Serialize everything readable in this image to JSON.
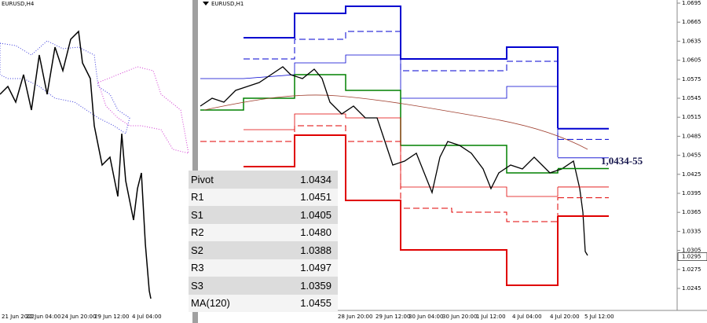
{
  "left_panel": {
    "symbol": "EURUSD,H4",
    "time_labels": [
      "21 Jun 2022",
      "22 Jun 04:00",
      "24 Jun 20:00",
      "29 Jun 12:00",
      "4 Jul 04:00"
    ]
  },
  "right_panel": {
    "symbol": "EURUSD,H1",
    "time_labels": [
      "28 Jun 20:00",
      "29 Jun 12:00",
      "30 Jun 04:00",
      "30 Jun 20:00",
      "1 Jul 12:00",
      "4 Jul 04:00",
      "4 Jul 20:00",
      "5 Jul 12:00"
    ],
    "price_ticks": [
      1.0695,
      1.0665,
      1.0635,
      1.0605,
      1.0575,
      1.0545,
      1.0515,
      1.0485,
      1.0455,
      1.0425,
      1.0395,
      1.0365,
      1.0335,
      1.0305,
      1.0275,
      1.0245
    ],
    "current_price": 1.0295,
    "annotation": "1,0434-55"
  },
  "table": {
    "rows": [
      [
        "Pivot",
        "1.0434"
      ],
      [
        "R1",
        "1.0451"
      ],
      [
        "S1",
        "1.0405"
      ],
      [
        "R2",
        "1.0480"
      ],
      [
        "S2",
        "1.0388"
      ],
      [
        "R3",
        "1.0497"
      ],
      [
        "S3",
        "1.0359"
      ],
      [
        "MA(120)",
        "1.0455"
      ]
    ]
  }
}
